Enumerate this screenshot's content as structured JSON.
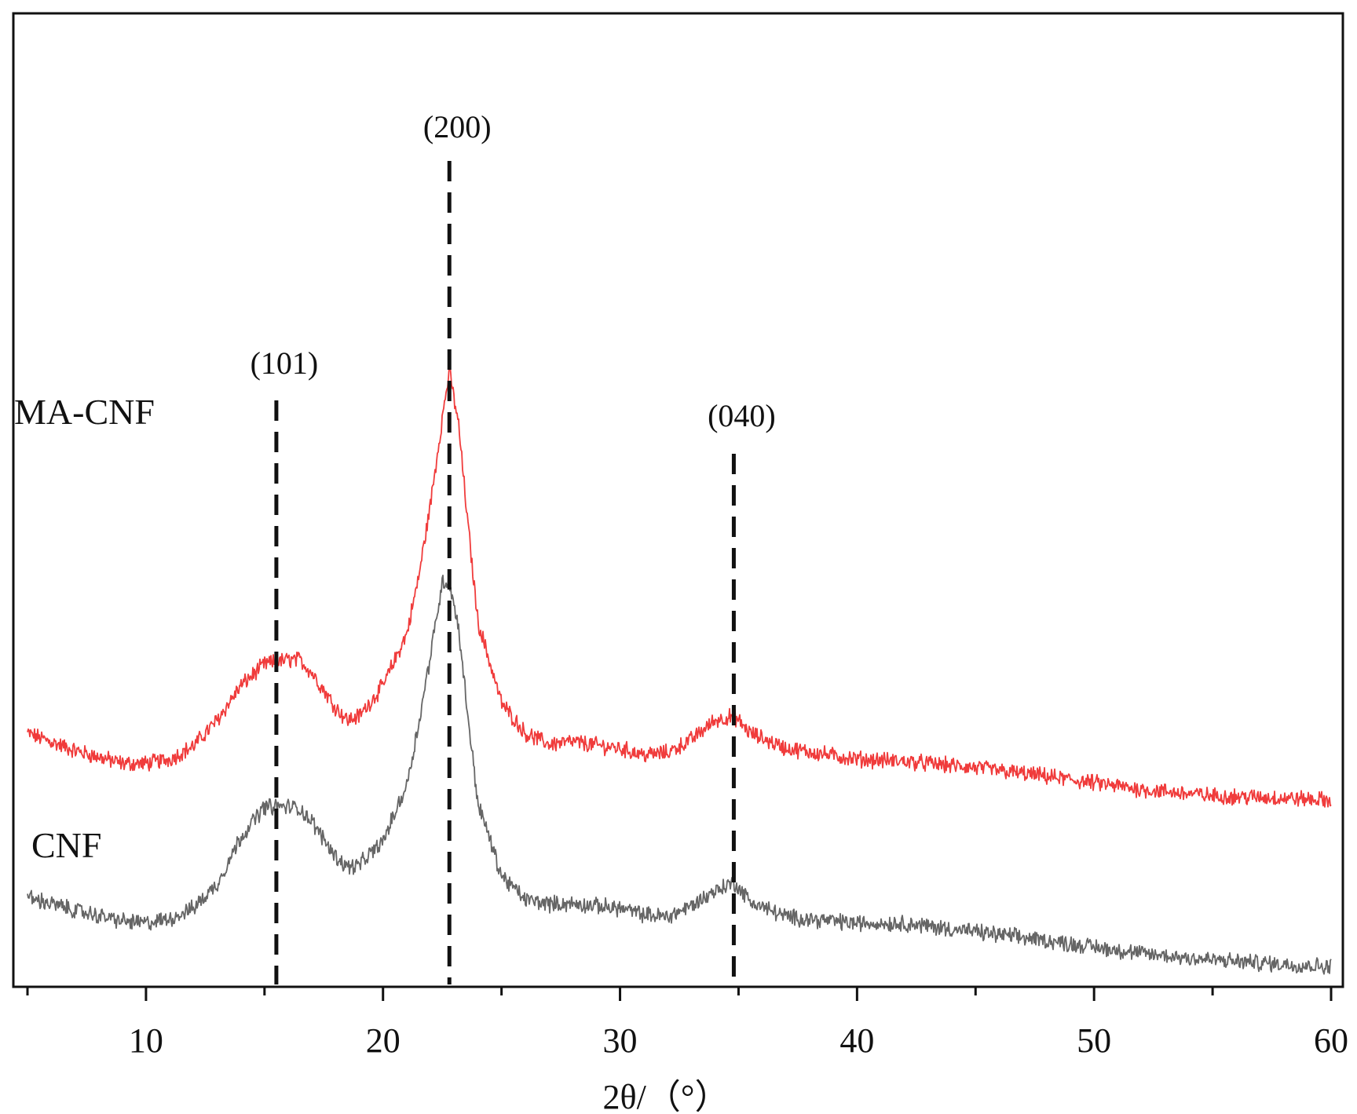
{
  "chart_data": {
    "type": "line",
    "title": "",
    "xlabel": "2θ/（°）",
    "ylabel": "",
    "xlim": [
      5,
      60
    ],
    "x_ticks": [
      10,
      20,
      30,
      40,
      50,
      60
    ],
    "x_tick_labels": [
      "10",
      "20",
      "30",
      "40",
      "50",
      "60"
    ],
    "y_ticks_shown": false,
    "grid": false,
    "legend": "none",
    "series": [
      {
        "name": "MA-CNF",
        "color": "#f03c3c",
        "x": [
          5,
          7,
          9,
          10,
          11,
          12,
          13,
          14,
          15,
          16,
          16.5,
          17,
          18,
          18.5,
          19,
          20,
          21,
          21.5,
          22,
          22.5,
          22.8,
          23.2,
          23.5,
          24,
          25,
          26,
          27,
          28,
          30,
          31,
          32,
          33,
          34,
          34.8,
          35.5,
          37,
          40,
          42,
          45,
          48,
          50,
          52,
          55,
          58,
          60
        ],
        "y": [
          5.2,
          4.8,
          4.5,
          4.5,
          4.6,
          4.9,
          5.5,
          6.3,
          6.8,
          6.9,
          6.9,
          6.6,
          5.8,
          5.5,
          5.6,
          6.3,
          7.5,
          8.8,
          10.5,
          12.5,
          13.6,
          12.3,
          10.5,
          7.8,
          5.9,
          5.2,
          4.95,
          5.0,
          4.85,
          4.7,
          4.75,
          5.05,
          5.5,
          5.6,
          5.2,
          4.85,
          4.6,
          4.55,
          4.4,
          4.2,
          4.05,
          3.9,
          3.75,
          3.7,
          3.65
        ]
      },
      {
        "name": "CNF",
        "color": "#666666",
        "x": [
          5,
          7,
          9,
          10,
          11,
          12,
          13,
          14,
          15,
          16,
          16.5,
          17,
          18,
          18.5,
          19,
          20,
          21,
          21.5,
          22,
          22.5,
          22.8,
          23.2,
          23.5,
          24,
          25,
          26,
          27,
          28,
          30,
          31,
          32,
          33,
          34,
          34.8,
          35.5,
          37,
          40,
          42,
          45,
          48,
          50,
          52,
          55,
          58,
          60
        ],
        "y": [
          1.4,
          1.1,
          0.85,
          0.8,
          0.9,
          1.15,
          1.7,
          2.8,
          3.5,
          3.5,
          3.45,
          3.15,
          2.35,
          2.1,
          2.15,
          2.7,
          4.0,
          5.4,
          7.0,
          8.7,
          8.7,
          7.6,
          6.0,
          3.6,
          1.9,
          1.35,
          1.25,
          1.25,
          1.15,
          1.0,
          0.95,
          1.2,
          1.55,
          1.75,
          1.3,
          0.95,
          0.8,
          0.8,
          0.6,
          0.4,
          0.25,
          0.1,
          -0.05,
          -0.15,
          -0.2
        ]
      }
    ],
    "peak_markers": [
      {
        "label": "(101)",
        "x": 15.5
      },
      {
        "label": "(200)",
        "x": 22.8
      },
      {
        "label": "(040)",
        "x": 34.8
      }
    ],
    "series_labels": [
      "MA-CNF",
      "CNF"
    ]
  }
}
